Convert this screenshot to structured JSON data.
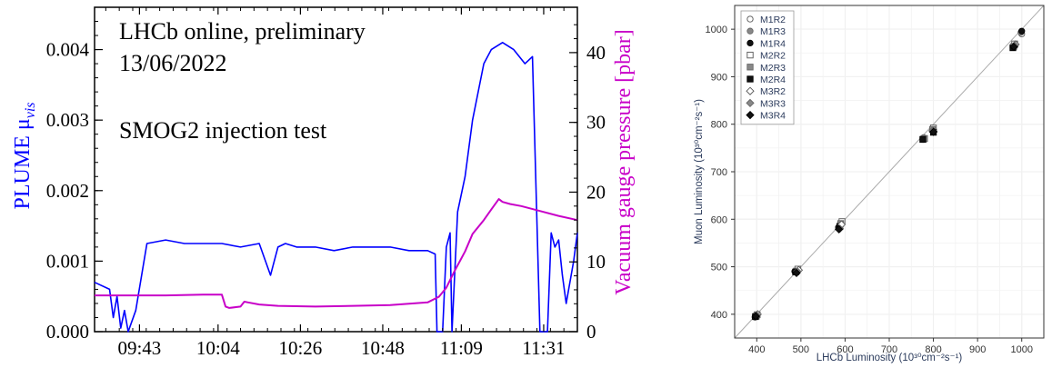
{
  "chart_data": [
    {
      "type": "line",
      "annotations": [
        "LHCb online, preliminary",
        "13/06/2022",
        "SMOG2 injection test"
      ],
      "xlabel": "",
      "ylabel": "PLUME μ",
      "ylabel_sub": "vis",
      "y2label": "Vacuum gauge pressure [pbar]",
      "x_ticks": [
        "09:43",
        "10:04",
        "10:26",
        "10:48",
        "11:09",
        "11:31"
      ],
      "y_ticks": [
        "0.000",
        "0.001",
        "0.002",
        "0.003",
        "0.004"
      ],
      "y2_ticks": [
        "0",
        "10",
        "20",
        "30",
        "40"
      ],
      "ylim": [
        0,
        0.0046
      ],
      "y2lim": [
        0,
        46.5
      ],
      "xlim_minutes": [
        571,
        700
      ],
      "series": [
        {
          "axis": "left",
          "color": "#0000ff",
          "x": [
            571,
            575,
            576,
            577,
            578,
            579,
            580,
            582,
            585,
            590,
            595,
            600,
            605,
            610,
            615,
            618,
            620,
            622,
            625,
            630,
            635,
            640,
            645,
            650,
            655,
            660,
            662,
            662.5,
            664,
            665,
            666,
            666.5,
            668,
            670,
            672,
            675,
            677,
            680,
            683,
            686,
            688,
            690,
            692,
            693,
            694,
            695,
            696,
            697,
            699,
            700
          ],
          "y": [
            0.0007,
            0.0006,
            0.0002,
            0.0005,
            5e-05,
            0.0003,
            0,
            0.0003,
            0.00125,
            0.0013,
            0.00125,
            0.00125,
            0.00125,
            0.0012,
            0.00125,
            0.0008,
            0.0012,
            0.00125,
            0.0012,
            0.0012,
            0.00115,
            0.0012,
            0.0012,
            0.0012,
            0.00115,
            0.00115,
            0.0011,
            0,
            0,
            0.0012,
            0.0014,
            0,
            0.0017,
            0.0022,
            0.003,
            0.0038,
            0.004,
            0.0041,
            0.004,
            0.0038,
            0.0039,
            0,
            0,
            0.0014,
            0.0012,
            0.0013,
            0.0008,
            0.0004,
            0.001,
            0.0014
          ]
        },
        {
          "axis": "right",
          "color": "#c800c8",
          "x": [
            571,
            580,
            590,
            600,
            605,
            606,
            607,
            610,
            611,
            612,
            615,
            620,
            630,
            640,
            650,
            655,
            660,
            663,
            665,
            667,
            670,
            672,
            675,
            677,
            679,
            680,
            682,
            685,
            690,
            695,
            700
          ],
          "y": [
            5.2,
            5.2,
            5.2,
            5.3,
            5.3,
            3.6,
            3.4,
            3.6,
            4.3,
            4.2,
            3.9,
            3.7,
            3.6,
            3.7,
            3.8,
            4.0,
            4.2,
            5.0,
            6.3,
            8.5,
            11.5,
            14,
            16,
            17.5,
            19,
            18.6,
            18.3,
            18.0,
            17.3,
            16.6,
            16.0
          ]
        }
      ]
    },
    {
      "type": "scatter",
      "xlabel": "LHCb Luminosity (10³⁰cm⁻²s⁻¹)",
      "ylabel": "Muon Luminosity (10³⁰cm⁻²s⁻¹)",
      "xlim": [
        350,
        1050
      ],
      "ylim": [
        350,
        1050
      ],
      "x_ticks": [
        400,
        500,
        600,
        700,
        800,
        900,
        1000
      ],
      "y_ticks": [
        400,
        500,
        600,
        700,
        800,
        900,
        1000
      ],
      "grid": true,
      "legend_position": "top-left",
      "diagonal_reference": true,
      "series": [
        {
          "name": "M1R2",
          "marker": "circle-open",
          "x": [
            400,
            490,
            590,
            778,
            800,
            985,
            1000
          ],
          "y": [
            398,
            488,
            590,
            772,
            790,
            965,
            990
          ]
        },
        {
          "name": "M1R3",
          "marker": "circle-gray",
          "x": [
            398,
            488,
            588,
            780,
            798,
            983,
            998
          ],
          "y": [
            397,
            489,
            587,
            770,
            787,
            967,
            993
          ]
        },
        {
          "name": "M1R4",
          "marker": "circle-filled",
          "x": [
            396,
            486,
            585,
            776,
            800,
            980,
            1000
          ],
          "y": [
            394,
            490,
            583,
            768,
            785,
            962,
            996
          ]
        },
        {
          "name": "M2R2",
          "marker": "square-open",
          "x": [
            401,
            493,
            593,
            778,
            800,
            984
          ],
          "y": [
            399,
            495,
            595,
            769,
            792,
            969
          ]
        },
        {
          "name": "M2R3",
          "marker": "square-gray",
          "x": [
            399,
            490,
            590,
            780,
            798,
            982
          ],
          "y": [
            396,
            491,
            591,
            770,
            789,
            964
          ]
        },
        {
          "name": "M2R4",
          "marker": "square-filled",
          "x": [
            397,
            488,
            588,
            776,
            800,
            980
          ],
          "y": [
            395,
            489,
            585,
            768,
            783,
            961
          ]
        },
        {
          "name": "M3R2",
          "marker": "diamond-open",
          "x": [
            402,
            495,
            592,
            800,
            986
          ],
          "y": [
            400,
            493,
            589,
            785,
            968
          ]
        },
        {
          "name": "M3R3",
          "marker": "diamond-gray",
          "x": [
            400,
            492,
            588,
            798,
            984
          ],
          "y": [
            398,
            490,
            580,
            786,
            966
          ]
        },
        {
          "name": "M3R4",
          "marker": "diamond-filled",
          "x": [
            398,
            490,
            586,
            800,
            982
          ],
          "y": [
            396,
            487,
            579,
            784,
            963
          ]
        }
      ]
    }
  ]
}
